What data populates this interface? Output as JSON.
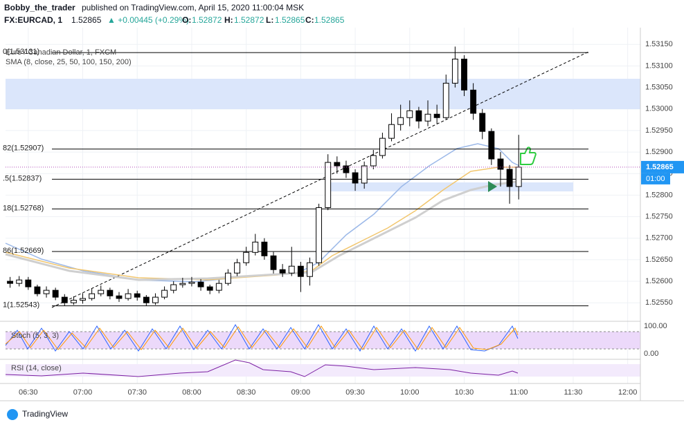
{
  "header": {
    "author": "Bobby_the_trader",
    "published": "published on TradingView.com, April 15, 2020 11:00:04 MSK",
    "symbol": "FX:EURCAD, 1",
    "last": "1.52865",
    "change": "▲ +0.00445 (+0.29%)",
    "o_label": "O:",
    "o": "1.52872",
    "h_label": "H:",
    "h": "1.52872",
    "l_label": "L:",
    "l": "1.52865",
    "c_label": "C:",
    "c": "1.52865"
  },
  "chart_data": {
    "type": "candlestick",
    "title": "Euro / Canadian Dollar, 1, FXCM",
    "subtitle": "SMA (8, close, 25, 50, 100, 150, 200)",
    "x": [
      380,
      385,
      390,
      395,
      400,
      405,
      410,
      415,
      420,
      425,
      430,
      435,
      440,
      445,
      450,
      455,
      460,
      465,
      470,
      475,
      480,
      485,
      490,
      495,
      500,
      505,
      510,
      515,
      520,
      525,
      530,
      535,
      540,
      545,
      550,
      555,
      560,
      565,
      570,
      575,
      580,
      585,
      590,
      595,
      600,
      605,
      610,
      615,
      620,
      625,
      630,
      635,
      640,
      645,
      650,
      655,
      660
    ],
    "candles": [
      [
        1.526,
        1.5261,
        1.52585,
        1.52595
      ],
      [
        1.52595,
        1.52612,
        1.52588,
        1.52603
      ],
      [
        1.52603,
        1.5261,
        1.5258,
        1.52587
      ],
      [
        1.52587,
        1.52592,
        1.52565,
        1.52571
      ],
      [
        1.52571,
        1.52588,
        1.52562,
        1.52579
      ],
      [
        1.52579,
        1.52585,
        1.52556,
        1.52563
      ],
      [
        1.52563,
        1.5257,
        1.52543,
        1.5255
      ],
      [
        1.5255,
        1.52565,
        1.52545,
        1.52556
      ],
      [
        1.52556,
        1.52572,
        1.52548,
        1.5256
      ],
      [
        1.5256,
        1.52583,
        1.52555,
        1.52571
      ],
      [
        1.52571,
        1.5259,
        1.52565,
        1.52579
      ],
      [
        1.52579,
        1.52585,
        1.52558,
        1.52566
      ],
      [
        1.52566,
        1.52575,
        1.52552,
        1.5256
      ],
      [
        1.5256,
        1.52582,
        1.52555,
        1.52571
      ],
      [
        1.52571,
        1.52578,
        1.52555,
        1.52563
      ],
      [
        1.52563,
        1.52568,
        1.52543,
        1.5255
      ],
      [
        1.5255,
        1.52572,
        1.52545,
        1.52563
      ],
      [
        1.52563,
        1.52588,
        1.52558,
        1.52579
      ],
      [
        1.52579,
        1.526,
        1.52572,
        1.52592
      ],
      [
        1.52592,
        1.52608,
        1.52585,
        1.52595
      ],
      [
        1.52595,
        1.5261,
        1.52588,
        1.52598
      ],
      [
        1.52598,
        1.52605,
        1.52578,
        1.52587
      ],
      [
        1.52587,
        1.52592,
        1.5257,
        1.52579
      ],
      [
        1.52579,
        1.52603,
        1.52572,
        1.52595
      ],
      [
        1.52595,
        1.52628,
        1.5259,
        1.52619
      ],
      [
        1.52619,
        1.52652,
        1.52612,
        1.52643
      ],
      [
        1.52643,
        1.5268,
        1.52636,
        1.52667
      ],
      [
        1.52667,
        1.5271,
        1.5266,
        1.52691
      ],
      [
        1.52691,
        1.527,
        1.5265,
        1.52659
      ],
      [
        1.52659,
        1.52668,
        1.52618,
        1.52627
      ],
      [
        1.52627,
        1.5264,
        1.5261,
        1.52619
      ],
      [
        1.52619,
        1.5268,
        1.52612,
        1.52635
      ],
      [
        1.52635,
        1.52645,
        1.52575,
        1.52611
      ],
      [
        1.52611,
        1.52655,
        1.5259,
        1.52643
      ],
      [
        1.52643,
        1.5278,
        1.52636,
        1.52771
      ],
      [
        1.52771,
        1.52895,
        1.52765,
        1.52876
      ],
      [
        1.52876,
        1.5289,
        1.5285,
        1.52868
      ],
      [
        1.52868,
        1.5288,
        1.5284,
        1.52852
      ],
      [
        1.52852,
        1.5286,
        1.5281,
        1.52828
      ],
      [
        1.52828,
        1.52878,
        1.52815,
        1.52868
      ],
      [
        1.52868,
        1.52905,
        1.5286,
        1.52892
      ],
      [
        1.52892,
        1.52945,
        1.52885,
        1.52932
      ],
      [
        1.52932,
        1.5299,
        1.52925,
        1.52964
      ],
      [
        1.52964,
        1.5301,
        1.5295,
        1.5298
      ],
      [
        1.5298,
        1.5302,
        1.5296,
        1.52996
      ],
      [
        1.52996,
        1.53005,
        1.52955,
        1.52972
      ],
      [
        1.52972,
        1.5302,
        1.5296,
        1.52988
      ],
      [
        1.52988,
        1.5301,
        1.52965,
        1.5298
      ],
      [
        1.5298,
        1.5308,
        1.52975,
        1.5306
      ],
      [
        1.5306,
        1.53145,
        1.5305,
        1.53116
      ],
      [
        1.53116,
        1.53125,
        1.5303,
        1.53044
      ],
      [
        1.53044,
        1.5306,
        1.52975,
        1.5299
      ],
      [
        1.5299,
        1.53,
        1.5293,
        1.52948
      ],
      [
        1.52948,
        1.52955,
        1.5287,
        1.52884
      ],
      [
        1.52884,
        1.529,
        1.5282,
        1.5286
      ],
      [
        1.5286,
        1.5287,
        1.5278,
        1.5282
      ],
      [
        1.5282,
        1.5294,
        1.5279,
        1.52865
      ]
    ],
    "up_color": "#ffffff",
    "down_color": "#000000",
    "fib_levels": [
      {
        "value": 1.53131,
        "label": "0(1.53131)"
      },
      {
        "value": 1.52907,
        "label": "82(1.52907)"
      },
      {
        "value": 1.52837,
        "label": ".5(1.52837)"
      },
      {
        "value": 1.52768,
        "label": "18(1.52768)"
      },
      {
        "value": 1.52669,
        "label": "86(1.52669)"
      },
      {
        "value": 1.52543,
        "label": "1(1.52543)"
      }
    ],
    "last_price": {
      "value": 1.52865,
      "label": "1.52865"
    },
    "countdown": "01:00",
    "xlim": [
      377.5,
      727
    ],
    "ylim": [
      1.52507,
      1.53189
    ],
    "xticks": [
      {
        "value": 390,
        "label": "06:30"
      },
      {
        "value": 420,
        "label": "07:00"
      },
      {
        "value": 450,
        "label": "07:30"
      },
      {
        "value": 480,
        "label": "08:00"
      },
      {
        "value": 510,
        "label": "08:30"
      },
      {
        "value": 540,
        "label": "09:00"
      },
      {
        "value": 570,
        "label": "09:30"
      },
      {
        "value": 600,
        "label": "10:00"
      },
      {
        "value": 630,
        "label": "10:30"
      },
      {
        "value": 660,
        "label": "11:00"
      },
      {
        "value": 690,
        "label": "11:30"
      },
      {
        "value": 720,
        "label": "12:00"
      }
    ],
    "yticks": [
      {
        "value": 1.5315,
        "label": "1.53150"
      },
      {
        "value": 1.531,
        "label": "1.53100"
      },
      {
        "value": 1.5305,
        "label": "1.53050"
      },
      {
        "value": 1.53,
        "label": "1.53000"
      },
      {
        "value": 1.5295,
        "label": "1.52950"
      },
      {
        "value": 1.529,
        "label": "1.52900"
      },
      {
        "value": 1.5285,
        "label": "1.52850"
      },
      {
        "value": 1.528,
        "label": "1.52800"
      },
      {
        "value": 1.5275,
        "label": "1.52750"
      },
      {
        "value": 1.527,
        "label": "1.52700"
      },
      {
        "value": 1.5265,
        "label": "1.52650"
      },
      {
        "value": 1.526,
        "label": "1.52600"
      },
      {
        "value": 1.5255,
        "label": "1.52550"
      }
    ],
    "grid": true,
    "stoch": {
      "title": "Stoch (5, 3, 3)",
      "top": "100.00",
      "bottom": "0.00"
    },
    "rsi": {
      "title": "RSI (14, close)"
    }
  },
  "footer": {
    "brand": "TradingView"
  }
}
